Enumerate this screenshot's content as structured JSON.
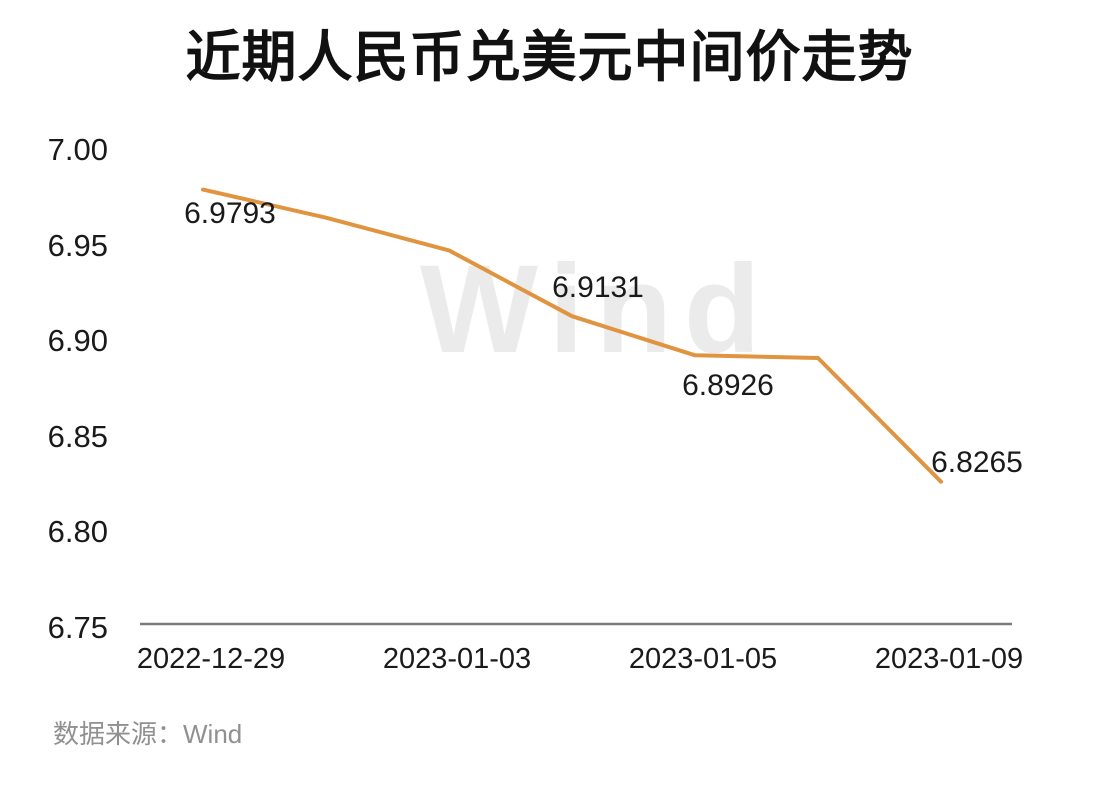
{
  "page": {
    "background": "#ffffff"
  },
  "chart_data": {
    "type": "line",
    "title": "近期人民币兑美元中间价走势",
    "xlabel": "",
    "ylabel": "",
    "ylim": [
      6.75,
      7.0
    ],
    "grid": false,
    "legend": "none",
    "y_ticks": [
      "7.00",
      "6.95",
      "6.90",
      "6.85",
      "6.80",
      "6.75"
    ],
    "x_ticks": [
      {
        "label": "2022-12-29",
        "index": 0
      },
      {
        "label": "2023-01-03",
        "index": 2
      },
      {
        "label": "2023-01-05",
        "index": 4
      },
      {
        "label": "2023-01-09",
        "index": 6
      }
    ],
    "points": [
      {
        "index": 0,
        "value": 6.9793,
        "label": "6.9793"
      },
      {
        "index": 1,
        "value": 6.9646,
        "label": null
      },
      {
        "index": 2,
        "value": 6.9475,
        "label": null
      },
      {
        "index": 3,
        "value": 6.9131,
        "label": "6.9131"
      },
      {
        "index": 4,
        "value": 6.8926,
        "label": "6.8926"
      },
      {
        "index": 5,
        "value": 6.8912,
        "label": null
      },
      {
        "index": 6,
        "value": 6.8265,
        "label": "6.8265"
      }
    ],
    "colors": {
      "line": "#E09440",
      "axis": "#7a7a7a",
      "title_text": "#111111",
      "tick_text": "#1a1a1a",
      "source_text": "#909090",
      "watermark_text": "#ebebeb"
    },
    "watermark": "Wind",
    "source_note": "数据来源：Wind"
  }
}
